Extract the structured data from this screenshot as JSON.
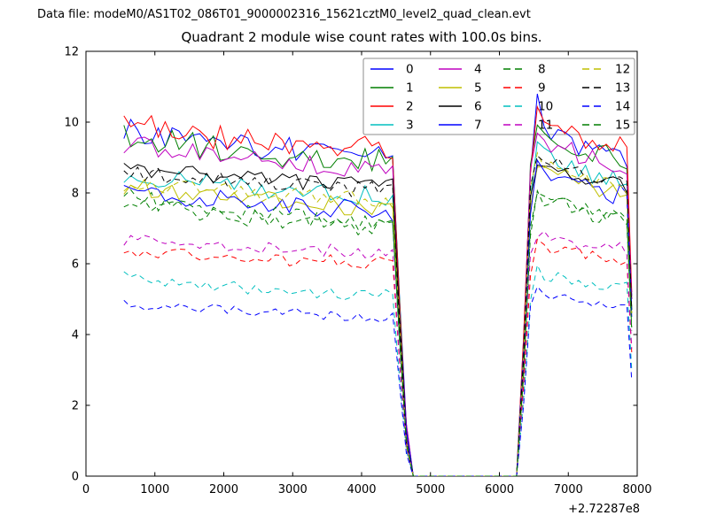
{
  "header": {
    "datafile": "Data file: modeM0/AS1T02_086T01_9000002316_15621cztM0_level2_quad_clean.evt"
  },
  "chart_data": {
    "type": "line",
    "title": "Quadrant 2 module wise count rates with 100.0s bins.",
    "xlabel": "",
    "ylabel": "",
    "xlim": [
      0,
      8000
    ],
    "ylim": [
      0,
      12
    ],
    "xticks": [
      0,
      1000,
      2000,
      3000,
      4000,
      5000,
      6000,
      7000,
      8000
    ],
    "yticks": [
      0,
      2,
      4,
      6,
      8,
      10,
      12
    ],
    "x_axis_offset": "+2.72287e8",
    "bin_size_label": "100.0s",
    "grid": false,
    "legend": {
      "position": "upper center-right",
      "columns": 4,
      "order": "column-major",
      "entries": [
        "0",
        "1",
        "2",
        "3",
        "4",
        "5",
        "6",
        "7",
        "8",
        "9",
        "10",
        "11",
        "12",
        "13",
        "14",
        "15"
      ]
    },
    "gap": {
      "fall_start_x": 4450,
      "zero_from_x": 4750,
      "zero_to_x": 6270,
      "recover_x": 6550
    },
    "x_sampling": {
      "start": 550,
      "end": 7850,
      "step": 100,
      "last_x": 7920
    },
    "series": [
      {
        "name": "0",
        "color": "#0000ff",
        "style": "solid",
        "noise_amp": 0.35,
        "seed": 1,
        "profile": [
          [
            550,
            9.8
          ],
          [
            1800,
            9.4
          ],
          [
            3200,
            9.2
          ],
          [
            4450,
            9.0
          ],
          [
            4560,
            4.5
          ],
          [
            4660,
            0.9
          ],
          [
            4750,
            0
          ],
          [
            6270,
            0
          ],
          [
            6360,
            4.2
          ],
          [
            6450,
            8.6
          ],
          [
            6550,
            10.5
          ],
          [
            6800,
            9.6
          ],
          [
            7100,
            9.3
          ],
          [
            7850,
            9.0
          ],
          [
            7920,
            5.1
          ]
        ]
      },
      {
        "name": "1",
        "color": "#007f00",
        "style": "solid",
        "noise_amp": 0.35,
        "seed": 2,
        "profile": [
          [
            550,
            9.6
          ],
          [
            1800,
            9.3
          ],
          [
            3200,
            9.0
          ],
          [
            4450,
            8.9
          ],
          [
            4560,
            4.4
          ],
          [
            4660,
            0.9
          ],
          [
            4750,
            0
          ],
          [
            6270,
            0
          ],
          [
            6360,
            4.1
          ],
          [
            6450,
            8.5
          ],
          [
            6550,
            10.2
          ],
          [
            6800,
            9.5
          ],
          [
            7100,
            9.2
          ],
          [
            7850,
            8.9
          ],
          [
            7920,
            5.0
          ]
        ]
      },
      {
        "name": "2",
        "color": "#ff0000",
        "style": "solid",
        "noise_amp": 0.35,
        "seed": 3,
        "profile": [
          [
            550,
            10.0
          ],
          [
            1800,
            9.6
          ],
          [
            3200,
            9.4
          ],
          [
            4450,
            9.2
          ],
          [
            4560,
            4.6
          ],
          [
            4660,
            0.9
          ],
          [
            4750,
            0
          ],
          [
            6270,
            0
          ],
          [
            6360,
            4.3
          ],
          [
            6450,
            8.7
          ],
          [
            6550,
            10.5
          ],
          [
            6800,
            9.8
          ],
          [
            7100,
            9.5
          ],
          [
            7850,
            9.2
          ],
          [
            7920,
            5.2
          ]
        ]
      },
      {
        "name": "3",
        "color": "#00bfbf",
        "style": "solid",
        "noise_amp": 0.28,
        "seed": 4,
        "profile": [
          [
            550,
            8.4
          ],
          [
            1800,
            8.3
          ],
          [
            3200,
            8.0
          ],
          [
            4450,
            7.9
          ],
          [
            4560,
            4.0
          ],
          [
            4660,
            0.8
          ],
          [
            4750,
            0
          ],
          [
            6270,
            0
          ],
          [
            6360,
            3.9
          ],
          [
            6450,
            7.9
          ],
          [
            6550,
            9.2
          ],
          [
            6800,
            8.8
          ],
          [
            7100,
            8.6
          ],
          [
            7850,
            8.3
          ],
          [
            7920,
            4.7
          ]
        ]
      },
      {
        "name": "4",
        "color": "#bf00bf",
        "style": "solid",
        "noise_amp": 0.3,
        "seed": 5,
        "profile": [
          [
            550,
            9.4
          ],
          [
            1800,
            9.1
          ],
          [
            3200,
            8.8
          ],
          [
            4450,
            8.7
          ],
          [
            4560,
            4.3
          ],
          [
            4660,
            0.9
          ],
          [
            4750,
            0
          ],
          [
            6270,
            0
          ],
          [
            6360,
            4.1
          ],
          [
            6450,
            8.4
          ],
          [
            6550,
            9.8
          ],
          [
            6800,
            9.3
          ],
          [
            7100,
            9.1
          ],
          [
            7850,
            8.8
          ],
          [
            7920,
            5.0
          ]
        ]
      },
      {
        "name": "5",
        "color": "#bfbf00",
        "style": "solid",
        "noise_amp": 0.28,
        "seed": 6,
        "profile": [
          [
            550,
            8.2
          ],
          [
            1800,
            7.9
          ],
          [
            3200,
            7.7
          ],
          [
            4450,
            7.6
          ],
          [
            4560,
            3.8
          ],
          [
            4660,
            0.8
          ],
          [
            4750,
            0
          ],
          [
            6270,
            0
          ],
          [
            6360,
            3.7
          ],
          [
            6450,
            7.6
          ],
          [
            6550,
            8.8
          ],
          [
            6800,
            8.5
          ],
          [
            7100,
            8.3
          ],
          [
            7850,
            8.0
          ],
          [
            7920,
            4.6
          ]
        ]
      },
      {
        "name": "6",
        "color": "#000000",
        "style": "solid",
        "noise_amp": 0.22,
        "seed": 7,
        "profile": [
          [
            550,
            8.7
          ],
          [
            1800,
            8.5
          ],
          [
            3200,
            8.3
          ],
          [
            4450,
            8.2
          ],
          [
            4560,
            4.1
          ],
          [
            4660,
            0.8
          ],
          [
            4750,
            0
          ],
          [
            6270,
            0
          ],
          [
            6360,
            3.8
          ],
          [
            6450,
            7.8
          ],
          [
            6550,
            9.0
          ],
          [
            6800,
            8.7
          ],
          [
            7100,
            8.5
          ],
          [
            7850,
            8.2
          ],
          [
            7920,
            4.7
          ]
        ]
      },
      {
        "name": "7",
        "color": "#0000ff",
        "style": "solid",
        "noise_amp": 0.3,
        "seed": 8,
        "profile": [
          [
            550,
            8.1
          ],
          [
            1800,
            7.8
          ],
          [
            3200,
            7.6
          ],
          [
            4450,
            7.5
          ],
          [
            4560,
            3.7
          ],
          [
            4660,
            0.8
          ],
          [
            4750,
            0
          ],
          [
            6270,
            0
          ],
          [
            6360,
            3.7
          ],
          [
            6450,
            7.5
          ],
          [
            6550,
            8.8
          ],
          [
            6800,
            8.4
          ],
          [
            7100,
            8.2
          ],
          [
            7850,
            7.9
          ],
          [
            7920,
            4.5
          ]
        ]
      },
      {
        "name": "8",
        "color": "#007f00",
        "style": "dashed",
        "noise_amp": 0.25,
        "seed": 9,
        "profile": [
          [
            550,
            7.9
          ],
          [
            1800,
            7.5
          ],
          [
            3200,
            7.3
          ],
          [
            4450,
            7.1
          ],
          [
            4560,
            3.5
          ],
          [
            4660,
            0.7
          ],
          [
            4750,
            0
          ],
          [
            6270,
            0
          ],
          [
            6360,
            3.4
          ],
          [
            6450,
            7.0
          ],
          [
            6550,
            8.0
          ],
          [
            6800,
            7.8
          ],
          [
            7100,
            7.6
          ],
          [
            7850,
            7.3
          ],
          [
            7920,
            4.2
          ]
        ]
      },
      {
        "name": "9",
        "color": "#ff0000",
        "style": "dashed",
        "noise_amp": 0.18,
        "seed": 10,
        "profile": [
          [
            550,
            6.4
          ],
          [
            1800,
            6.2
          ],
          [
            3200,
            6.1
          ],
          [
            4450,
            6.0
          ],
          [
            4560,
            3.0
          ],
          [
            4660,
            0.6
          ],
          [
            4750,
            0
          ],
          [
            6270,
            0
          ],
          [
            6360,
            2.8
          ],
          [
            6450,
            5.8
          ],
          [
            6550,
            6.6
          ],
          [
            6800,
            6.4
          ],
          [
            7100,
            6.3
          ],
          [
            7850,
            6.1
          ],
          [
            7920,
            3.5
          ]
        ]
      },
      {
        "name": "10",
        "color": "#00bfbf",
        "style": "dashed",
        "noise_amp": 0.18,
        "seed": 11,
        "profile": [
          [
            550,
            5.6
          ],
          [
            1800,
            5.4
          ],
          [
            3200,
            5.2
          ],
          [
            4450,
            5.1
          ],
          [
            4560,
            2.6
          ],
          [
            4660,
            0.5
          ],
          [
            4750,
            0
          ],
          [
            6270,
            0
          ],
          [
            6360,
            2.5
          ],
          [
            6450,
            5.1
          ],
          [
            6550,
            5.8
          ],
          [
            6800,
            5.6
          ],
          [
            7100,
            5.5
          ],
          [
            7850,
            5.3
          ],
          [
            7920,
            3.0
          ]
        ]
      },
      {
        "name": "11",
        "color": "#bf00bf",
        "style": "dashed",
        "noise_amp": 0.18,
        "seed": 12,
        "profile": [
          [
            550,
            6.7
          ],
          [
            1800,
            6.5
          ],
          [
            3200,
            6.4
          ],
          [
            4450,
            6.3
          ],
          [
            4560,
            3.1
          ],
          [
            4660,
            0.6
          ],
          [
            4750,
            0
          ],
          [
            6270,
            0
          ],
          [
            6360,
            3.0
          ],
          [
            6450,
            6.1
          ],
          [
            6550,
            6.9
          ],
          [
            6800,
            6.7
          ],
          [
            7100,
            6.6
          ],
          [
            7850,
            6.4
          ],
          [
            7920,
            3.6
          ]
        ]
      },
      {
        "name": "12",
        "color": "#bfbf00",
        "style": "dashed",
        "noise_amp": 0.25,
        "seed": 13,
        "profile": [
          [
            550,
            8.3
          ],
          [
            1800,
            8.1
          ],
          [
            3200,
            7.9
          ],
          [
            4450,
            7.8
          ],
          [
            4560,
            3.9
          ],
          [
            4660,
            0.8
          ],
          [
            4750,
            0
          ],
          [
            6270,
            0
          ],
          [
            6360,
            3.9
          ],
          [
            6450,
            7.9
          ],
          [
            6550,
            9.0
          ],
          [
            6800,
            8.7
          ],
          [
            7100,
            8.5
          ],
          [
            7850,
            8.2
          ],
          [
            7920,
            4.6
          ]
        ]
      },
      {
        "name": "13",
        "color": "#000000",
        "style": "dashed",
        "noise_amp": 0.25,
        "seed": 14,
        "profile": [
          [
            550,
            8.6
          ],
          [
            1800,
            8.4
          ],
          [
            3200,
            8.2
          ],
          [
            4450,
            8.1
          ],
          [
            4560,
            4.0
          ],
          [
            4660,
            0.8
          ],
          [
            4750,
            0
          ],
          [
            6270,
            0
          ],
          [
            6360,
            3.9
          ],
          [
            6450,
            8.0
          ],
          [
            6550,
            9.1
          ],
          [
            6800,
            8.8
          ],
          [
            7100,
            8.6
          ],
          [
            7850,
            8.3
          ],
          [
            7920,
            4.7
          ]
        ]
      },
      {
        "name": "14",
        "color": "#0000ff",
        "style": "dashed",
        "noise_amp": 0.16,
        "seed": 15,
        "profile": [
          [
            550,
            4.9
          ],
          [
            1800,
            4.7
          ],
          [
            3200,
            4.6
          ],
          [
            4450,
            4.5
          ],
          [
            4560,
            2.3
          ],
          [
            4660,
            0.5
          ],
          [
            4750,
            0
          ],
          [
            6270,
            0
          ],
          [
            6360,
            2.3
          ],
          [
            6450,
            4.7
          ],
          [
            6550,
            5.3
          ],
          [
            6800,
            5.1
          ],
          [
            7100,
            5.0
          ],
          [
            7850,
            4.8
          ],
          [
            7920,
            2.7
          ]
        ]
      },
      {
        "name": "15",
        "color": "#007f00",
        "style": "dashed",
        "noise_amp": 0.25,
        "seed": 16,
        "profile": [
          [
            550,
            7.7
          ],
          [
            1800,
            7.4
          ],
          [
            3200,
            7.1
          ],
          [
            4450,
            7.0
          ],
          [
            4560,
            3.5
          ],
          [
            4660,
            0.7
          ],
          [
            4750,
            0
          ],
          [
            6270,
            0
          ],
          [
            6360,
            3.4
          ],
          [
            6450,
            6.9
          ],
          [
            6550,
            7.9
          ],
          [
            6800,
            7.7
          ],
          [
            7100,
            7.5
          ],
          [
            7850,
            7.2
          ],
          [
            7920,
            4.1
          ]
        ]
      }
    ]
  }
}
